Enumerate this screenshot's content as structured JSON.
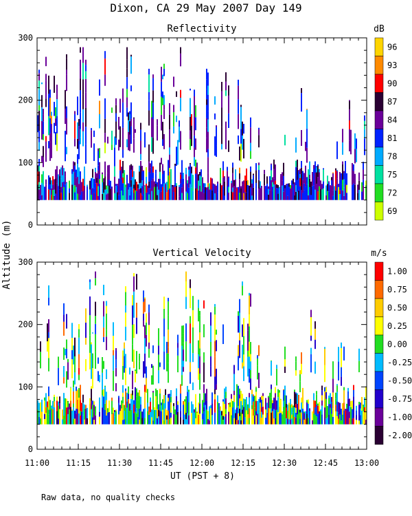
{
  "figure": {
    "title": "Dixon, CA 29 May 2007  Day 149",
    "ylabel": "Altitude (m)",
    "xlabel": "UT  (PST + 8)",
    "footnote": "Raw data, no quality checks"
  },
  "chart_data": [
    {
      "type": "heatmap",
      "title": "Reflectivity",
      "ylabel": "Altitude (m)",
      "xlabel": "UT  (PST + 8)",
      "ylim": [
        0,
        300
      ],
      "yticks": [
        0,
        100,
        200,
        300
      ],
      "xlim": [
        "11:00",
        "13:00"
      ],
      "xticks": [
        "11:00",
        "11:15",
        "11:30",
        "11:45",
        "12:00",
        "12:15",
        "12:30",
        "12:45",
        "13:00"
      ],
      "colorbar": {
        "unit": "dB",
        "labels": [
          "96",
          "93",
          "90",
          "87",
          "84",
          "81",
          "78",
          "75",
          "72",
          "69"
        ],
        "colors": [
          "#ffd400",
          "#ff8a00",
          "#ff0000",
          "#2a0033",
          "#6a0099",
          "#0022ff",
          "#00aaff",
          "#00e0a0",
          "#22dd22",
          "#ccff00"
        ]
      },
      "data_note": "Returns between about 40 m and 280 m altitude, densest below 100 m; mostly 78–87 dB with scattered 90 dB cells."
    },
    {
      "type": "heatmap",
      "title": "Vertical Velocity",
      "ylabel": "Altitude (m)",
      "xlabel": "UT  (PST + 8)",
      "ylim": [
        0,
        300
      ],
      "yticks": [
        0,
        100,
        200,
        300
      ],
      "xlim": [
        "11:00",
        "13:00"
      ],
      "xticks": [
        "11:00",
        "11:15",
        "11:30",
        "11:45",
        "12:00",
        "12:15",
        "12:30",
        "12:45",
        "13:00"
      ],
      "colorbar": {
        "unit": "m/s",
        "labels": [
          "1.00",
          "0.75",
          "0.50",
          "0.25",
          "0.00",
          "-0.25",
          "-0.50",
          "-0.75",
          "-1.00",
          "-2.00"
        ],
        "colors": [
          "#ff0000",
          "#ff6a00",
          "#ffcc00",
          "#ffff00",
          "#22dd22",
          "#00bbff",
          "#0044ff",
          "#2200cc",
          "#6a0099",
          "#2a0033"
        ]
      },
      "data_note": "Velocities mostly between -0.5 and +0.5 m/s below 100 m, with updraft streaks reaching 200–280 m."
    }
  ]
}
